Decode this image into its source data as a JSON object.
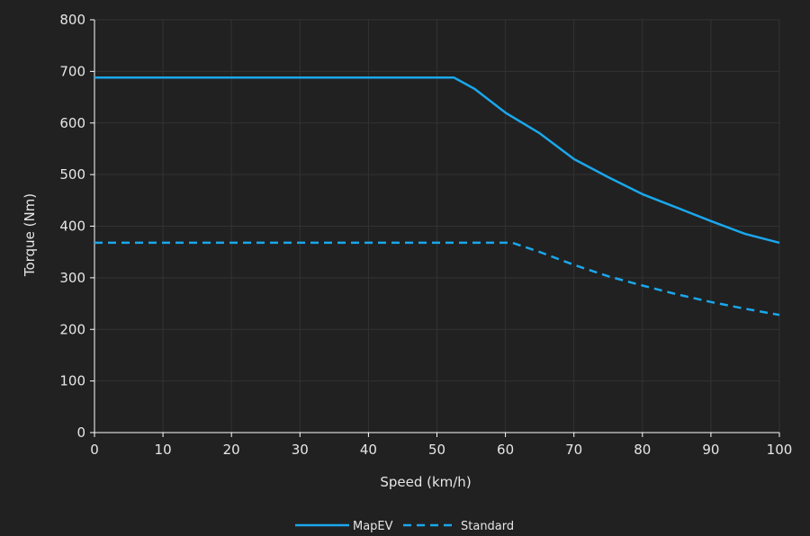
{
  "chart_data": {
    "type": "line",
    "title": "",
    "xlabel": "Speed (km/h)",
    "ylabel": "Torque (Nm)",
    "xlim": [
      0,
      100
    ],
    "ylim": [
      0,
      800
    ],
    "x_ticks": [
      0,
      10,
      20,
      30,
      40,
      50,
      60,
      70,
      80,
      90,
      100
    ],
    "y_ticks": [
      0,
      100,
      200,
      300,
      400,
      500,
      600,
      700,
      800
    ],
    "grid": true,
    "legend_position": "bottom-center",
    "colors": {
      "background": "#212121",
      "grid": "#333333",
      "axis": "#ffffff",
      "series": "#1aa7ec"
    },
    "series": [
      {
        "name": "MapEV",
        "style": "solid",
        "points": [
          [
            0,
            688
          ],
          [
            52.5,
            688
          ],
          [
            55.5,
            666
          ],
          [
            60,
            620
          ],
          [
            65,
            580
          ],
          [
            70,
            530
          ],
          [
            75,
            495
          ],
          [
            80,
            462
          ],
          [
            85,
            436
          ],
          [
            90,
            410
          ],
          [
            95,
            385
          ],
          [
            100,
            368
          ]
        ]
      },
      {
        "name": "Standard",
        "style": "dashed",
        "points": [
          [
            0,
            368
          ],
          [
            61,
            368
          ],
          [
            65,
            350
          ],
          [
            70,
            325
          ],
          [
            75,
            303
          ],
          [
            80,
            285
          ],
          [
            85,
            268
          ],
          [
            90,
            253
          ],
          [
            95,
            240
          ],
          [
            100,
            228
          ]
        ]
      }
    ]
  }
}
